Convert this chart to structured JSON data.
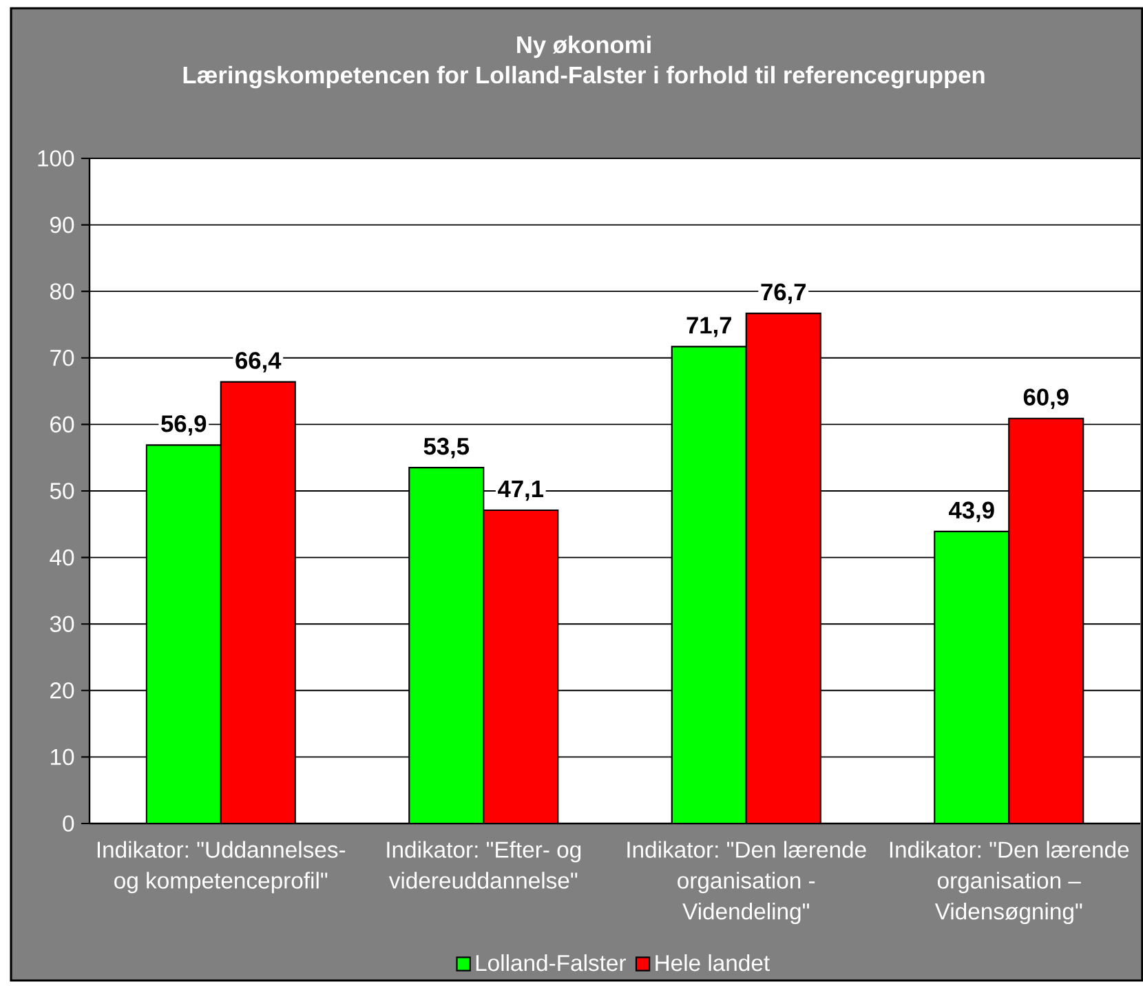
{
  "chart_data": {
    "type": "bar",
    "title": "Ny økonomi",
    "subtitle": "Læringskompetencen for Lolland-Falster i forhold til referencegruppen",
    "categories": [
      "Indikator: \"Uddannelses- og kompetenceprofil\"",
      "Indikator: \"Efter- og videreuddannelse\"",
      "Indikator: \"Den lærende organisation - Videndeling\"",
      "Indikator: \"Den lærende organisation – Vidensøgning\""
    ],
    "series": [
      {
        "name": "Lolland-Falster",
        "color": "#00ff00",
        "values": [
          56.9,
          53.5,
          71.7,
          43.9
        ],
        "value_labels": [
          "56,9",
          "53,5",
          "71,7",
          "43,9"
        ]
      },
      {
        "name": "Hele landet",
        "color": "#ff0000",
        "values": [
          66.4,
          47.1,
          76.7,
          60.9
        ],
        "value_labels": [
          "66,4",
          "47,1",
          "76,7",
          "60,9"
        ]
      }
    ],
    "ylim": [
      0,
      100
    ],
    "yticks": [
      0,
      10,
      20,
      30,
      40,
      50,
      60,
      70,
      80,
      90,
      100
    ],
    "grid": "y",
    "legend": "bottom"
  }
}
